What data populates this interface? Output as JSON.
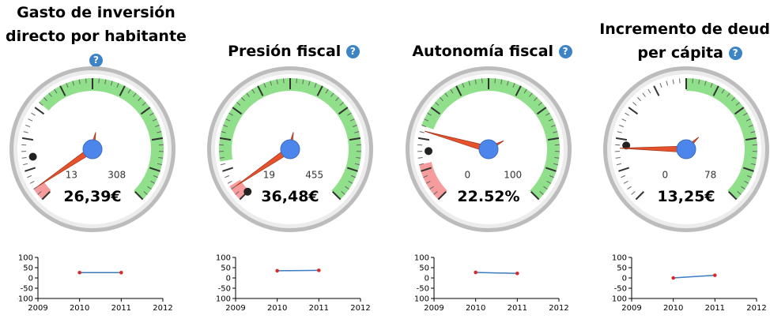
{
  "colors": {
    "green_band": "#90df8a",
    "red_band": "#f79c9c",
    "needle": "#e6522c",
    "hub": "#4c86ec",
    "help": "#3d84c6",
    "spark_line": "#3b7bbf",
    "spark_point": "#d62b2b"
  },
  "help_icon_text": "?",
  "spark_axis": {
    "y_ticks": [
      "100",
      "50",
      "0",
      "-50",
      "-100"
    ],
    "x_ticks": [
      "2009",
      "2010",
      "2011",
      "2012"
    ]
  },
  "panels": [
    {
      "title_lines": [
        "Gasto de inversión",
        "directo por habitante"
      ],
      "value": "26,39€",
      "min_label": "13",
      "max_label": "308",
      "needle_fraction": 0.04,
      "marker_fraction": 0.14,
      "red_range": [
        0.0,
        0.04
      ],
      "green_range": [
        0.32,
        1.0
      ],
      "spark": {
        "x": [
          2010,
          2011
        ],
        "y": [
          26,
          26
        ]
      }
    },
    {
      "title_lines": [
        "Presión fiscal"
      ],
      "value": "36,48€",
      "min_label": "19",
      "max_label": "455",
      "needle_fraction": 0.04,
      "marker_fraction": 0.0,
      "red_range": [
        0.0,
        0.05
      ],
      "green_range": [
        0.13,
        1.0
      ],
      "spark": {
        "x": [
          2010,
          2011
        ],
        "y": [
          35,
          37
        ]
      }
    },
    {
      "title_lines": [
        "Autonomía fiscal"
      ],
      "value": "22.52%",
      "min_label": "0",
      "max_label": "100",
      "needle_fraction": 0.225,
      "marker_fraction": 0.16,
      "red_range": [
        0.0,
        0.12
      ],
      "green_range": [
        0.24,
        1.0
      ],
      "spark": {
        "x": [
          2010,
          2011
        ],
        "y": [
          27,
          22
        ]
      }
    },
    {
      "title_lines": [
        "Incremento de deuda",
        "per cápita"
      ],
      "value": "13,25€",
      "min_label": "0",
      "max_label": "78",
      "needle_fraction": 0.17,
      "marker_fraction": 0.18,
      "red_range": null,
      "green_range": [
        0.5,
        1.0
      ],
      "spark": {
        "x": [
          2010,
          2011
        ],
        "y": [
          0,
          13
        ]
      }
    }
  ]
}
